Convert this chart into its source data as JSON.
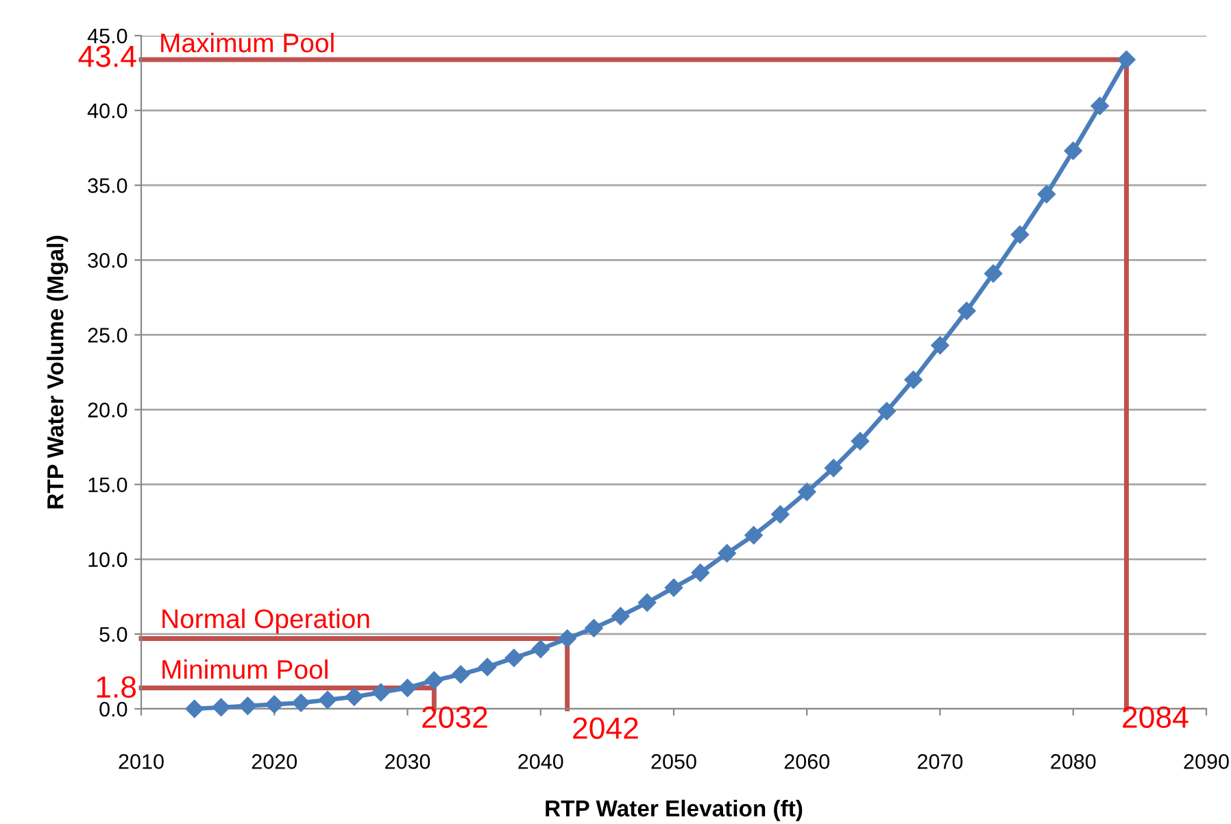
{
  "chart_data": {
    "type": "line",
    "xlabel": "RTP Water Elevation (ft)",
    "ylabel": "RTP Water Volume (Mgal)",
    "x": [
      2014,
      2016,
      2018,
      2020,
      2022,
      2024,
      2026,
      2028,
      2030,
      2032,
      2034,
      2036,
      2038,
      2040,
      2042,
      2044,
      2046,
      2048,
      2050,
      2052,
      2054,
      2056,
      2058,
      2060,
      2062,
      2064,
      2066,
      2068,
      2070,
      2072,
      2074,
      2076,
      2078,
      2080,
      2082,
      2084
    ],
    "series": [
      {
        "color": "#4a7ebb",
        "marker": "diamond",
        "values": [
          0.0,
          0.1,
          0.2,
          0.3,
          0.4,
          0.6,
          0.8,
          1.1,
          1.4,
          1.9,
          2.3,
          2.8,
          3.4,
          4.0,
          4.7,
          5.4,
          6.2,
          7.1,
          8.1,
          9.1,
          10.4,
          11.6,
          13.0,
          14.5,
          16.1,
          17.9,
          19.9,
          22.0,
          24.3,
          26.6,
          29.1,
          31.7,
          34.4,
          37.3,
          40.3,
          43.4
        ]
      },
      {
        "color": "#c0504d",
        "marker": "none",
        "x": [
          2010,
          2084,
          2084
        ],
        "values": [
          43.4,
          43.4,
          0
        ]
      },
      {
        "color": "#c0504d",
        "marker": "none",
        "x": [
          2010,
          2042,
          2042
        ],
        "values": [
          4.7,
          4.7,
          0
        ]
      },
      {
        "color": "#c0504d",
        "marker": "none",
        "x": [
          2010,
          2032,
          2032
        ],
        "values": [
          1.4,
          1.4,
          0
        ]
      }
    ],
    "xlim": [
      2010,
      2090
    ],
    "xticks": [
      2010,
      2020,
      2030,
      2040,
      2050,
      2060,
      2070,
      2080,
      2090
    ],
    "ylim": [
      0,
      45
    ],
    "yticks": [
      {
        "value": 0,
        "label": "0.0"
      },
      {
        "value": 5,
        "label": "5.0"
      },
      {
        "value": 10,
        "label": "10.0"
      },
      {
        "value": 15,
        "label": "15.0"
      },
      {
        "value": 20,
        "label": "20.0"
      },
      {
        "value": 25,
        "label": "25.0"
      },
      {
        "value": 30,
        "label": "30.0"
      },
      {
        "value": 35,
        "label": "35.0"
      },
      {
        "value": 40,
        "label": "40.0"
      },
      {
        "value": 45,
        "label": "45.0"
      }
    ],
    "grid": "y",
    "legend": false,
    "line_style": "solid",
    "annotations": [
      "Maximum Pool",
      "43.4",
      "Normal Operation",
      "Minimum Pool",
      "1.8",
      "2032",
      "2042",
      "2084"
    ]
  }
}
